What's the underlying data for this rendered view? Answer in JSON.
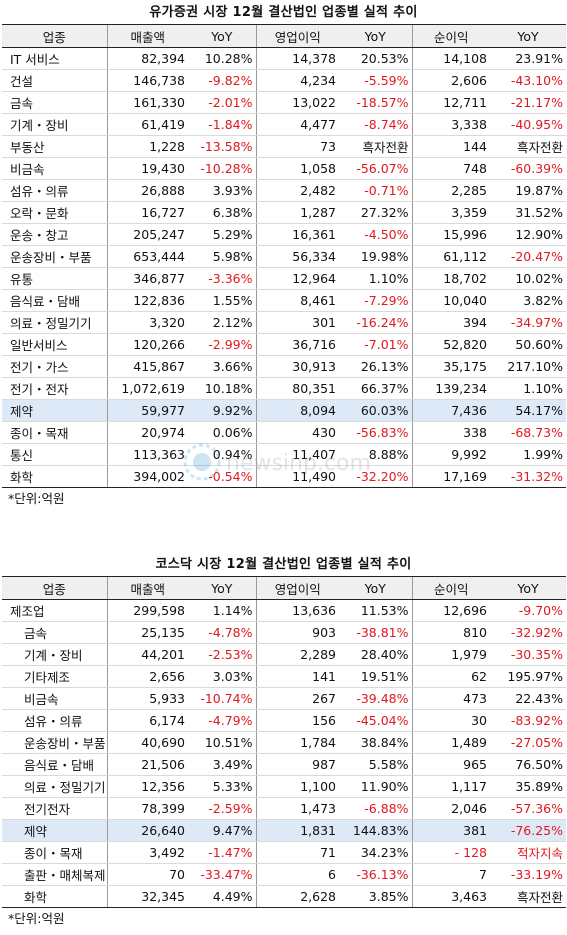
{
  "kospi": {
    "title": "유가증권 시장 12월 결산법인 업종별 실적 추이",
    "headers": [
      "업종",
      "매출액",
      "YoY",
      "영업이익",
      "YoY",
      "순이익",
      "YoY"
    ],
    "rows": [
      [
        "IT 서비스",
        "82,394",
        "10.28%",
        "14,378",
        "20.53%",
        "14,108",
        "23.91%"
      ],
      [
        "건설",
        "146,738",
        "-9.82%",
        "4,234",
        "-5.59%",
        "2,606",
        "-43.10%"
      ],
      [
        "금속",
        "161,330",
        "-2.01%",
        "13,022",
        "-18.57%",
        "12,711",
        "-21.17%"
      ],
      [
        "기계・장비",
        "61,419",
        "-1.84%",
        "4,477",
        "-8.74%",
        "3,338",
        "-40.95%"
      ],
      [
        "부동산",
        "1,228",
        "-13.58%",
        "73",
        "흑자전환",
        "144",
        "흑자전환"
      ],
      [
        "비금속",
        "19,430",
        "-10.28%",
        "1,058",
        "-56.07%",
        "748",
        "-60.39%"
      ],
      [
        "섬유・의류",
        "26,888",
        "3.93%",
        "2,482",
        "-0.71%",
        "2,285",
        "19.87%"
      ],
      [
        "오락・문화",
        "16,727",
        "6.38%",
        "1,287",
        "27.32%",
        "3,359",
        "31.52%"
      ],
      [
        "운송・창고",
        "205,247",
        "5.29%",
        "16,361",
        "-4.50%",
        "15,996",
        "12.90%"
      ],
      [
        "운송장비・부품",
        "653,444",
        "5.98%",
        "56,334",
        "19.98%",
        "61,112",
        "-20.47%"
      ],
      [
        "유통",
        "346,877",
        "-3.36%",
        "12,964",
        "1.10%",
        "18,702",
        "10.02%"
      ],
      [
        "음식료・담배",
        "122,836",
        "1.55%",
        "8,461",
        "-7.29%",
        "10,040",
        "3.82%"
      ],
      [
        "의료・정밀기기",
        "3,320",
        "2.12%",
        "301",
        "-16.24%",
        "394",
        "-34.97%"
      ],
      [
        "일반서비스",
        "120,266",
        "-2.99%",
        "36,716",
        "-7.01%",
        "52,820",
        "50.60%"
      ],
      [
        "전기・가스",
        "415,867",
        "3.66%",
        "30,913",
        "26.13%",
        "35,175",
        "217.10%"
      ],
      [
        "전기・전자",
        "1,072,619",
        "10.18%",
        "80,351",
        "66.37%",
        "139,234",
        "1.10%"
      ],
      [
        "제약",
        "59,977",
        "9.92%",
        "8,094",
        "60.03%",
        "7,436",
        "54.17%"
      ],
      [
        "종이・목재",
        "20,974",
        "0.06%",
        "430",
        "-56.83%",
        "338",
        "-68.73%"
      ],
      [
        "통신",
        "113,363",
        "0.94%",
        "11,407",
        "8.88%",
        "9,992",
        "1.99%"
      ],
      [
        "화학",
        "394,002",
        "-0.54%",
        "11,490",
        "-32.20%",
        "17,169",
        "-31.32%"
      ]
    ],
    "note": "*단위:억원"
  },
  "kosdaq": {
    "title": "코스닥 시장 12월 결산법인 업종별 실적 추이",
    "headers": [
      "업종",
      "매출액",
      "YoY",
      "영업이익",
      "YoY",
      "순이익",
      "YoY"
    ],
    "rows": [
      [
        "제조업",
        "299,598",
        "1.14%",
        "13,636",
        "11.53%",
        "12,696",
        "-9.70%"
      ],
      [
        "금속",
        "25,135",
        "-4.78%",
        "903",
        "-38.81%",
        "810",
        "-32.92%"
      ],
      [
        "기계・장비",
        "44,201",
        "-2.53%",
        "2,289",
        "28.40%",
        "1,979",
        "-30.35%"
      ],
      [
        "기타제조",
        "2,656",
        "3.03%",
        "141",
        "19.51%",
        "62",
        "195.97%"
      ],
      [
        "비금속",
        "5,933",
        "-10.74%",
        "267",
        "-39.48%",
        "473",
        "22.43%"
      ],
      [
        "섬유・의류",
        "6,174",
        "-4.79%",
        "156",
        "-45.04%",
        "30",
        "-83.92%"
      ],
      [
        "운송장비・부품",
        "40,690",
        "10.51%",
        "1,784",
        "38.84%",
        "1,489",
        "-27.05%"
      ],
      [
        "음식료・담배",
        "21,506",
        "3.49%",
        "987",
        "5.58%",
        "965",
        "76.50%"
      ],
      [
        "의료・정밀기기",
        "12,356",
        "5.33%",
        "1,100",
        "11.90%",
        "1,117",
        "35.89%"
      ],
      [
        "전기전자",
        "78,399",
        "-2.59%",
        "1,473",
        "-6.88%",
        "2,046",
        "-57.36%"
      ],
      [
        "제약",
        "26,640",
        "9.47%",
        "1,831",
        "144.83%",
        "381",
        "-76.25%"
      ],
      [
        "종이・목재",
        "3,492",
        "-1.47%",
        "71",
        "34.23%",
        "-   128",
        "적자지속"
      ],
      [
        "출판・매체복제",
        "70",
        "-33.47%",
        "6",
        "-36.13%",
        "7",
        "-33.19%"
      ],
      [
        "화학",
        "32,345",
        "4.49%",
        "2,628",
        "3.85%",
        "3,463",
        "흑자전환"
      ]
    ],
    "note": "*단위:억원"
  },
  "watermark": "newsinp.com",
  "colors": {
    "header_bg": "#efefef",
    "highlight_row": "#dde9f6",
    "negative": "#e0191f"
  }
}
